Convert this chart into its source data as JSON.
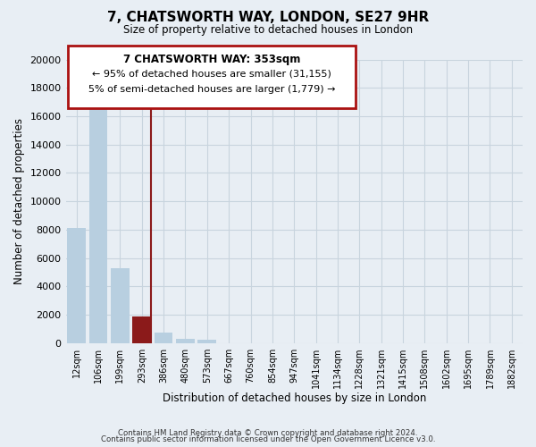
{
  "title": "7, CHATSWORTH WAY, LONDON, SE27 9HR",
  "subtitle": "Size of property relative to detached houses in London",
  "xlabel": "Distribution of detached houses by size in London",
  "ylabel": "Number of detached properties",
  "categories": [
    "12sqm",
    "106sqm",
    "199sqm",
    "293sqm",
    "386sqm",
    "480sqm",
    "573sqm",
    "667sqm",
    "760sqm",
    "854sqm",
    "947sqm",
    "1041sqm",
    "1134sqm",
    "1228sqm",
    "1321sqm",
    "1415sqm",
    "1508sqm",
    "1602sqm",
    "1695sqm",
    "1789sqm",
    "1882sqm"
  ],
  "values": [
    8100,
    16500,
    5300,
    1850,
    750,
    300,
    250,
    0,
    0,
    0,
    0,
    0,
    0,
    0,
    0,
    0,
    0,
    0,
    0,
    0,
    0
  ],
  "bar_color": "#b8cfe0",
  "highlight_bar_index": 3,
  "highlight_bar_color": "#8b1a1a",
  "annotation_title": "7 CHATSWORTH WAY: 353sqm",
  "annotation_line1": "← 95% of detached houses are smaller (31,155)",
  "annotation_line2": "5% of semi-detached houses are larger (1,779) →",
  "annotation_box_edge_color": "#aa1111",
  "ylim": [
    0,
    20000
  ],
  "yticks": [
    0,
    2000,
    4000,
    6000,
    8000,
    10000,
    12000,
    14000,
    16000,
    18000,
    20000
  ],
  "footer_line1": "Contains HM Land Registry data © Crown copyright and database right 2024.",
  "footer_line2": "Contains public sector information licensed under the Open Government Licence v3.0.",
  "bg_color": "#e8eef4",
  "plot_bg_color": "#e8eef4",
  "grid_color": "#c8d4de"
}
